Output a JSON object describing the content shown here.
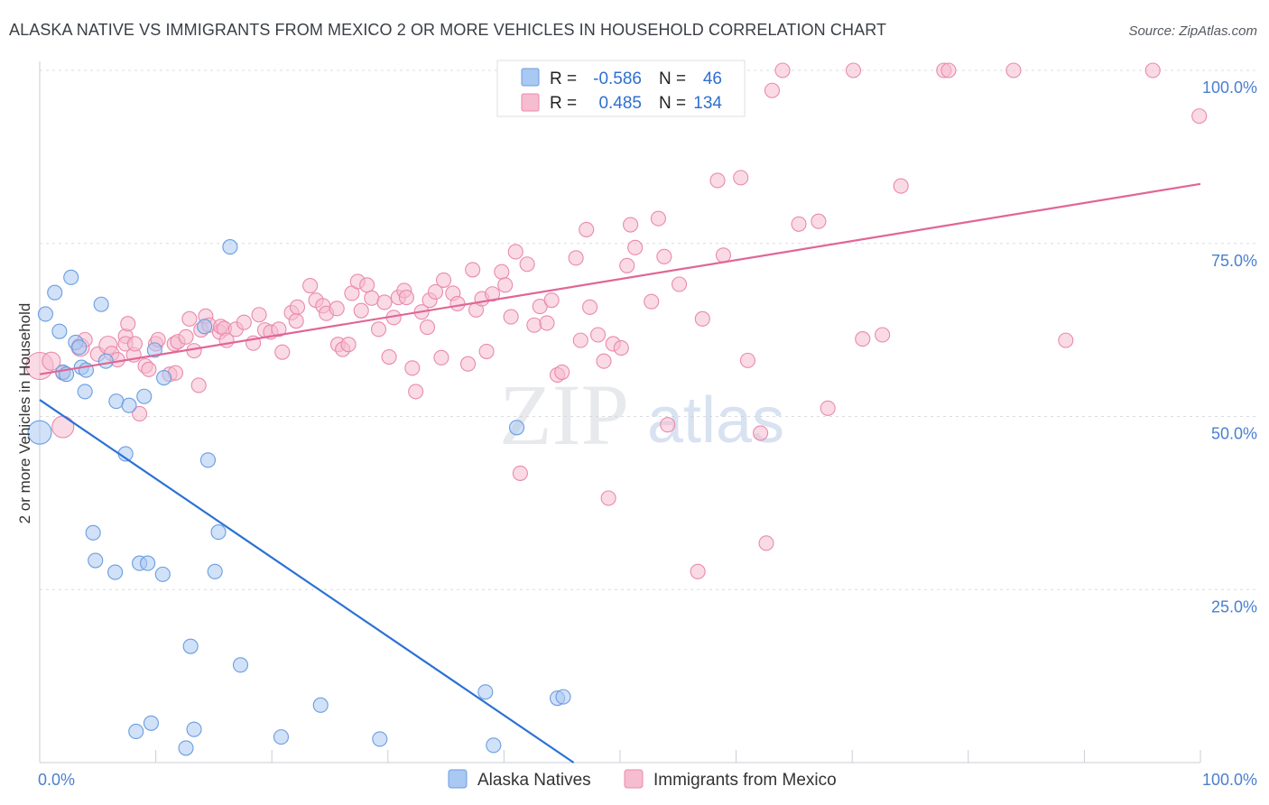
{
  "title": "ALASKA NATIVE VS IMMIGRANTS FROM MEXICO 2 OR MORE VEHICLES IN HOUSEHOLD CORRELATION CHART",
  "source": "Source: ZipAtlas.com",
  "watermark": {
    "zip": "ZIP",
    "atlas": "atlas"
  },
  "colors": {
    "blue_fill": "#a9c8f2",
    "blue_stroke": "#6a9de0",
    "blue_line": "#2b72d4",
    "pink_fill": "#f6bcd0",
    "pink_stroke": "#e98aab",
    "pink_line": "#e06695",
    "grid": "#d9dce1",
    "tick_text": "#4a7fd0"
  },
  "legend": {
    "rows": [
      {
        "r_label": "R =",
        "r_value": "-0.586",
        "n_label": "N =",
        "n_value": "46"
      },
      {
        "r_label": "R =",
        "r_value": "0.485",
        "n_label": "N =",
        "n_value": "134"
      }
    ]
  },
  "chart_data": {
    "type": "scatter",
    "title": "ALASKA NATIVE VS IMMIGRANTS FROM MEXICO 2 OR MORE VEHICLES IN HOUSEHOLD CORRELATION CHART",
    "xlabel": "",
    "ylabel": "2 or more Vehicles in Household",
    "xlim": [
      0,
      100
    ],
    "ylim": [
      0,
      100
    ],
    "x_tick_labels": [
      "0.0%",
      "100.0%"
    ],
    "y_ticks": [
      25,
      50,
      75,
      100
    ],
    "y_tick_labels": [
      "25.0%",
      "50.0%",
      "75.0%",
      "100.0%"
    ],
    "legend_position": "top-center",
    "series": [
      {
        "name": "Alaska Natives",
        "color": "#a9c8f2",
        "r": -0.586,
        "n": 46,
        "trend": {
          "x0": 0,
          "y0": 52.4,
          "x1": 46,
          "y1": 0
        },
        "points": [
          [
            0,
            47.7,
            13
          ],
          [
            0.5,
            64.8,
            8
          ],
          [
            1.3,
            67.9,
            8
          ],
          [
            1.7,
            62.3,
            8
          ],
          [
            2,
            56.4,
            8
          ],
          [
            2.3,
            56.1,
            8
          ],
          [
            2.7,
            70.1,
            8
          ],
          [
            3.1,
            60.7,
            8
          ],
          [
            3.4,
            60,
            8
          ],
          [
            3.6,
            57.1,
            8
          ],
          [
            3.9,
            53.6,
            8
          ],
          [
            4,
            56.7,
            8
          ],
          [
            5.3,
            66.2,
            8
          ],
          [
            5.7,
            58,
            8
          ],
          [
            6.6,
            52.2,
            8
          ],
          [
            7.4,
            44.6,
            8
          ],
          [
            7.7,
            51.6,
            8
          ],
          [
            9,
            52.9,
            8
          ],
          [
            9.9,
            59.6,
            8
          ],
          [
            10.7,
            55.6,
            8
          ],
          [
            14.2,
            63,
            8
          ],
          [
            14.5,
            43.7,
            8
          ],
          [
            16.4,
            74.5,
            8
          ],
          [
            4.6,
            33.2,
            8
          ],
          [
            4.8,
            29.2,
            8
          ],
          [
            6.5,
            27.5,
            8
          ],
          [
            8.6,
            28.8,
            8
          ],
          [
            9.3,
            28.8,
            8
          ],
          [
            10.6,
            27.2,
            8
          ],
          [
            15.1,
            27.6,
            8
          ],
          [
            15.4,
            33.3,
            8
          ],
          [
            13,
            16.8,
            8
          ],
          [
            17.3,
            14.1,
            8
          ],
          [
            8.3,
            4.5,
            8
          ],
          [
            9.6,
            5.7,
            8
          ],
          [
            12.6,
            2.1,
            8
          ],
          [
            13.3,
            4.8,
            8
          ],
          [
            20.8,
            3.7,
            8
          ],
          [
            24.2,
            8.3,
            8
          ],
          [
            29.3,
            3.4,
            8
          ],
          [
            38.4,
            10.2,
            8
          ],
          [
            39.1,
            2.5,
            8
          ],
          [
            41.1,
            48.4,
            8
          ],
          [
            44.6,
            9.3,
            8
          ],
          [
            45.1,
            9.5,
            8
          ]
        ]
      },
      {
        "name": "Immigrants from Mexico",
        "color": "#f6bcd0",
        "r": 0.485,
        "n": 134,
        "trend": {
          "x0": 0,
          "y0": 56.1,
          "x1": 100,
          "y1": 83.6
        },
        "points": [
          [
            0,
            57.3,
            15
          ],
          [
            1,
            58,
            10
          ],
          [
            2,
            56.3,
            8
          ],
          [
            2,
            48.5,
            12
          ],
          [
            3.5,
            60,
            10
          ],
          [
            3.9,
            61.1,
            8
          ],
          [
            5,
            59,
            8
          ],
          [
            5.9,
            60.3,
            10
          ],
          [
            6.2,
            59.1,
            8
          ],
          [
            6.7,
            58.2,
            8
          ],
          [
            7.4,
            61.6,
            8
          ],
          [
            7.4,
            60.5,
            8
          ],
          [
            7.6,
            63.4,
            8
          ],
          [
            8.1,
            58.9,
            8
          ],
          [
            8.2,
            60.5,
            8
          ],
          [
            8.6,
            50.4,
            8
          ],
          [
            9.1,
            57.3,
            8
          ],
          [
            9.4,
            56.8,
            8
          ],
          [
            10,
            60.5,
            8
          ],
          [
            10.2,
            61.1,
            8
          ],
          [
            11.2,
            56.1,
            8
          ],
          [
            11.6,
            60.5,
            8
          ],
          [
            11.7,
            56.3,
            8
          ],
          [
            11.9,
            60.8,
            8
          ],
          [
            12.6,
            61.5,
            8
          ],
          [
            12.9,
            64.1,
            8
          ],
          [
            13.3,
            59.5,
            8
          ],
          [
            13.7,
            54.5,
            8
          ],
          [
            13.9,
            62.5,
            8
          ],
          [
            14.3,
            64.5,
            8
          ],
          [
            14.6,
            63.2,
            8
          ],
          [
            15.5,
            62.2,
            8
          ],
          [
            15.6,
            63,
            8
          ],
          [
            15.9,
            62.7,
            8
          ],
          [
            16.1,
            61,
            8
          ],
          [
            16.9,
            62.6,
            8
          ],
          [
            17.6,
            63.6,
            8
          ],
          [
            18.4,
            60.6,
            8
          ],
          [
            18.9,
            64.7,
            8
          ],
          [
            19.4,
            62.5,
            8
          ],
          [
            19.9,
            62.2,
            8
          ],
          [
            20.6,
            62.6,
            8
          ],
          [
            20.9,
            59.3,
            8
          ],
          [
            21.7,
            65,
            8
          ],
          [
            22.1,
            63.8,
            8
          ],
          [
            22.2,
            65.8,
            8
          ],
          [
            23.3,
            68.9,
            8
          ],
          [
            23.8,
            66.8,
            8
          ],
          [
            24.4,
            66,
            8
          ],
          [
            24.7,
            64.9,
            8
          ],
          [
            25.6,
            65.6,
            8
          ],
          [
            25.7,
            60.4,
            8
          ],
          [
            26.1,
            59.7,
            8
          ],
          [
            26.6,
            60.4,
            8
          ],
          [
            26.9,
            67.8,
            8
          ],
          [
            27.4,
            69.5,
            8
          ],
          [
            27.7,
            65.3,
            8
          ],
          [
            28.2,
            69,
            8
          ],
          [
            28.6,
            67.1,
            8
          ],
          [
            29.2,
            62.6,
            8
          ],
          [
            29.7,
            66.5,
            8
          ],
          [
            30.1,
            58.6,
            8
          ],
          [
            30.5,
            64.3,
            8
          ],
          [
            30.9,
            67.2,
            8
          ],
          [
            31.4,
            68.2,
            8
          ],
          [
            31.6,
            67.2,
            8
          ],
          [
            32.1,
            57,
            8
          ],
          [
            32.4,
            53.6,
            8
          ],
          [
            32.9,
            65.1,
            8
          ],
          [
            33.4,
            62.9,
            8
          ],
          [
            33.6,
            66.8,
            8
          ],
          [
            34.1,
            68,
            8
          ],
          [
            34.6,
            58.5,
            8
          ],
          [
            34.8,
            69.7,
            8
          ],
          [
            35.6,
            67.8,
            8
          ],
          [
            36,
            66.3,
            8
          ],
          [
            36.9,
            57.6,
            8
          ],
          [
            37.3,
            71.2,
            8
          ],
          [
            37.6,
            65.4,
            8
          ],
          [
            38.1,
            67,
            8
          ],
          [
            38.5,
            59.4,
            8
          ],
          [
            39,
            67.7,
            8
          ],
          [
            39.8,
            70.9,
            8
          ],
          [
            40.1,
            69,
            8
          ],
          [
            40.6,
            64.4,
            8
          ],
          [
            41,
            73.8,
            8
          ],
          [
            41.4,
            41.8,
            8
          ],
          [
            42,
            72,
            8
          ],
          [
            42.6,
            63.2,
            8
          ],
          [
            43.1,
            65.9,
            8
          ],
          [
            43.7,
            63.5,
            8
          ],
          [
            44.1,
            66.8,
            8
          ],
          [
            44.6,
            56,
            8
          ],
          [
            45,
            56.4,
            8
          ],
          [
            46.2,
            72.9,
            8
          ],
          [
            46.6,
            61,
            8
          ],
          [
            47.1,
            77,
            8
          ],
          [
            47.4,
            65.8,
            8
          ],
          [
            48.1,
            61.8,
            8
          ],
          [
            48.6,
            58,
            8
          ],
          [
            49,
            38.2,
            8
          ],
          [
            49.4,
            60.5,
            8
          ],
          [
            50.1,
            59.9,
            8
          ],
          [
            50.6,
            71.8,
            8
          ],
          [
            50.9,
            77.7,
            8
          ],
          [
            51.3,
            74.4,
            8
          ],
          [
            52.7,
            66.6,
            8
          ],
          [
            53.3,
            78.6,
            8
          ],
          [
            53.8,
            73.1,
            8
          ],
          [
            54.1,
            48.8,
            8
          ],
          [
            55.1,
            69.1,
            8
          ],
          [
            56.1,
            100,
            8
          ],
          [
            56.7,
            27.6,
            8
          ],
          [
            57.1,
            64.1,
            8
          ],
          [
            58.4,
            84.1,
            8
          ],
          [
            58.9,
            73.3,
            8
          ],
          [
            60.4,
            84.5,
            8
          ],
          [
            61,
            58.1,
            8
          ],
          [
            62.1,
            47.6,
            8
          ],
          [
            62.6,
            31.7,
            8
          ],
          [
            63.1,
            97.1,
            8
          ],
          [
            64,
            100,
            8
          ],
          [
            65.4,
            77.8,
            8
          ],
          [
            67.1,
            78.2,
            8
          ],
          [
            67.9,
            51.2,
            8
          ],
          [
            70.1,
            100,
            8
          ],
          [
            70.9,
            61.2,
            8
          ],
          [
            72.6,
            61.8,
            8
          ],
          [
            74.2,
            83.3,
            8
          ],
          [
            77.9,
            100,
            8
          ],
          [
            78.3,
            100,
            8
          ],
          [
            83.9,
            100,
            8
          ],
          [
            88.4,
            61,
            8
          ],
          [
            95.9,
            100,
            8
          ],
          [
            99.9,
            93.4,
            8
          ]
        ]
      }
    ]
  },
  "bottom_legend": [
    {
      "label": "Alaska Natives"
    },
    {
      "label": "Immigrants from Mexico"
    }
  ]
}
